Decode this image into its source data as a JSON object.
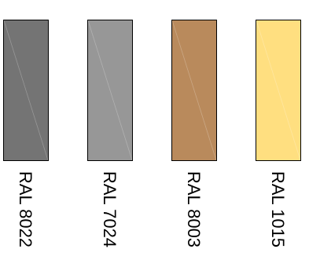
{
  "swatches": [
    {
      "label": "RAL 8022",
      "color": "#747474"
    },
    {
      "label": "RAL 7024",
      "color": "#979797"
    },
    {
      "label": "RAL 8003",
      "color": "#b98a5c"
    },
    {
      "label": "RAL 1015",
      "color": "#ffdf80"
    }
  ]
}
